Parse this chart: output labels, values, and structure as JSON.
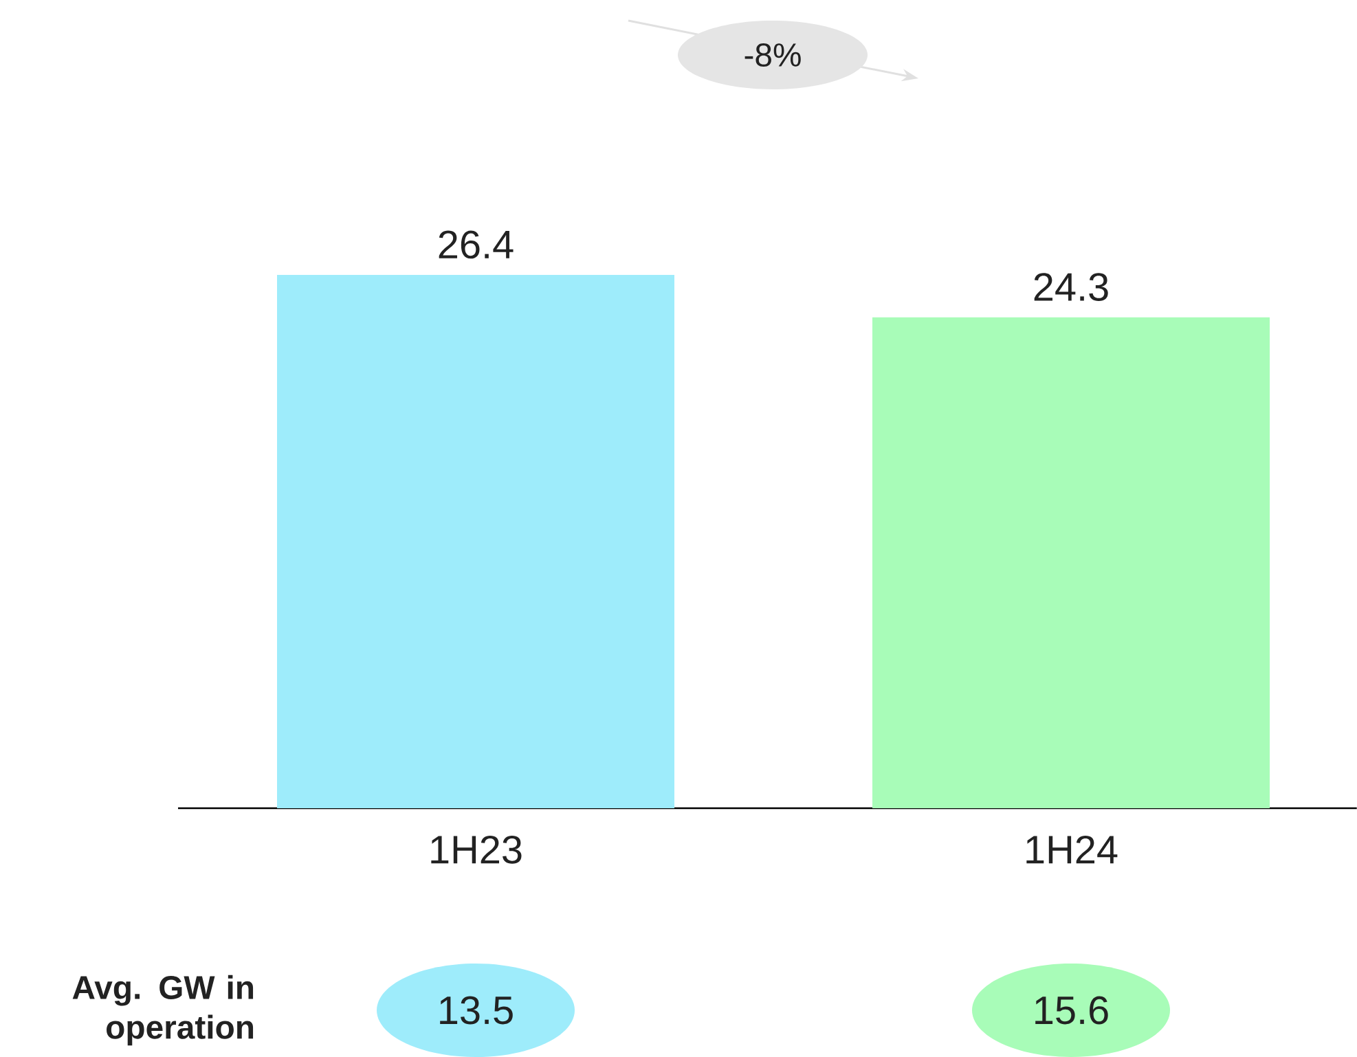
{
  "chart_data": {
    "type": "bar",
    "categories": [
      "1H23",
      "1H24"
    ],
    "values": [
      26.4,
      24.3
    ],
    "colors": [
      "#9eecfb",
      "#a8fcb8"
    ],
    "data_labels": true,
    "annotations": [
      "-8%",
      "Avg. GW in operation",
      "13.5",
      "15.6"
    ]
  }
}
